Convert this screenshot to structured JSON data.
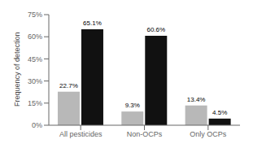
{
  "chart_data": {
    "type": "bar",
    "ylabel": "Frequency of detection",
    "categories": [
      "All pesticides",
      "Non-OCPs",
      "Only OCPs"
    ],
    "series": [
      {
        "color": "#b8b8b8",
        "values": [
          22.7,
          9.3,
          13.4
        ],
        "value_labels": [
          "22.7%",
          "9.3%",
          "13.4%"
        ]
      },
      {
        "color": "#111111",
        "values": [
          65.1,
          60.6,
          4.5
        ],
        "value_labels": [
          "65.1%",
          "60.6%",
          "4.5%"
        ]
      }
    ],
    "ylim": [
      0,
      75
    ],
    "yticks": [
      {
        "value": 0,
        "label": "0%"
      },
      {
        "value": 15,
        "label": "15%"
      },
      {
        "value": 30,
        "label": "30%"
      },
      {
        "value": 45,
        "label": "45%"
      },
      {
        "value": 60,
        "label": "60%"
      },
      {
        "value": 75,
        "label": "75%"
      }
    ],
    "grid": false
  }
}
